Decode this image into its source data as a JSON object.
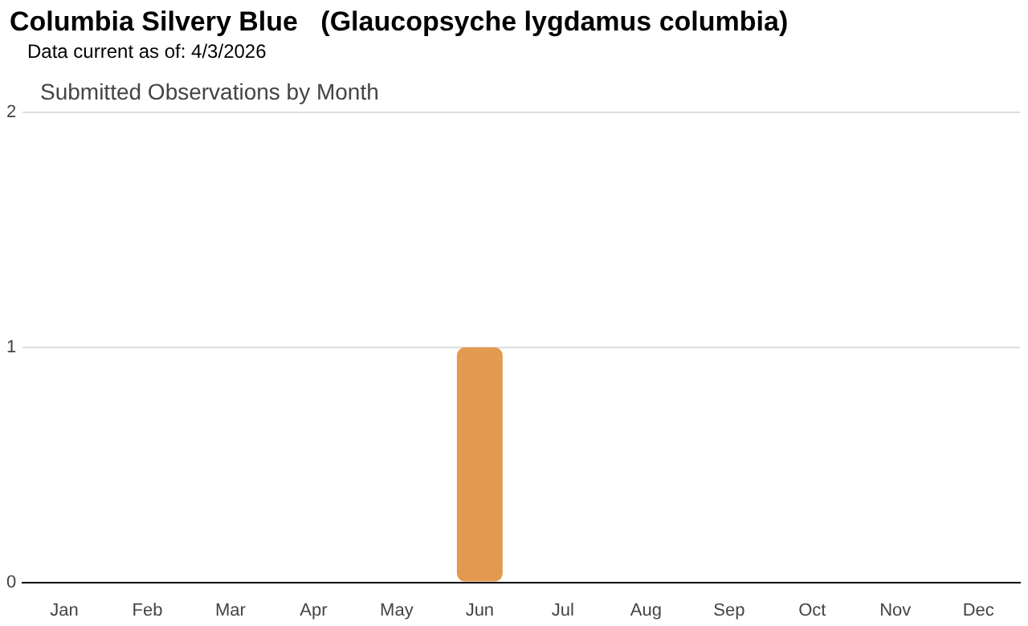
{
  "chart_data": {
    "type": "bar",
    "title": "Columbia Silvery Blue   (Glaucopsyche lygdamus columbia)",
    "subtitle": "Data current as of: 4/3/2026",
    "annotations": [
      "Submitted Observations by Month"
    ],
    "categories": [
      "Jan",
      "Feb",
      "Mar",
      "Apr",
      "May",
      "Jun",
      "Jul",
      "Aug",
      "Sep",
      "Oct",
      "Nov",
      "Dec"
    ],
    "values": [
      0,
      0,
      0,
      0,
      0,
      1,
      0,
      0,
      0,
      0,
      0,
      0
    ],
    "color": "#e39a50",
    "ylim": [
      0,
      2
    ],
    "yticks": [
      0,
      1,
      2
    ],
    "grid": "y",
    "legend": false
  }
}
